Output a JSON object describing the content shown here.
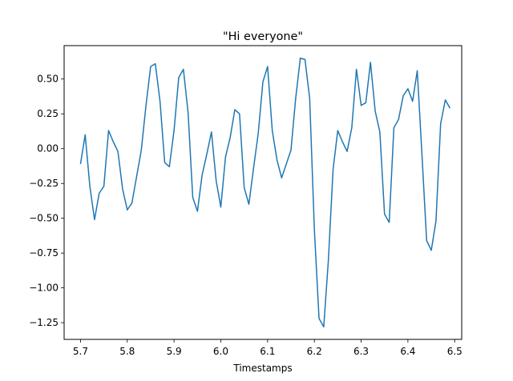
{
  "chart_data": {
    "type": "line",
    "title": "\"Hi everyone\"",
    "xlabel": "Timestamps",
    "ylabel": "",
    "xlim": [
      5.665,
      6.515
    ],
    "ylim": [
      -1.37,
      0.74
    ],
    "x_ticks": [
      5.7,
      5.8,
      5.9,
      6.0,
      6.1,
      6.2,
      6.3,
      6.4,
      6.5
    ],
    "x_tick_labels": [
      "5.7",
      "5.8",
      "5.9",
      "6.0",
      "6.1",
      "6.2",
      "6.3",
      "6.4",
      "6.5"
    ],
    "y_ticks": [
      -1.25,
      -1.0,
      -0.75,
      -0.5,
      -0.25,
      0.0,
      0.25,
      0.5
    ],
    "y_tick_labels": [
      "−1.25",
      "−1.00",
      "−0.75",
      "−0.50",
      "−0.25",
      "0.00",
      "0.25",
      "0.50"
    ],
    "grid": false,
    "series": [
      {
        "color": "#1f77b4",
        "x": [
          5.7,
          5.71,
          5.72,
          5.73,
          5.74,
          5.75,
          5.76,
          5.77,
          5.78,
          5.79,
          5.8,
          5.81,
          5.82,
          5.83,
          5.84,
          5.85,
          5.86,
          5.87,
          5.88,
          5.89,
          5.9,
          5.91,
          5.92,
          5.93,
          5.94,
          5.95,
          5.96,
          5.97,
          5.98,
          5.99,
          6.0,
          6.01,
          6.02,
          6.03,
          6.04,
          6.05,
          6.06,
          6.07,
          6.08,
          6.09,
          6.1,
          6.11,
          6.12,
          6.13,
          6.14,
          6.15,
          6.16,
          6.17,
          6.18,
          6.19,
          6.2,
          6.21,
          6.22,
          6.23,
          6.24,
          6.25,
          6.26,
          6.27,
          6.28,
          6.29,
          6.3,
          6.31,
          6.32,
          6.33,
          6.34,
          6.35,
          6.36,
          6.37,
          6.38,
          6.39,
          6.4,
          6.41,
          6.42,
          6.43,
          6.44,
          6.45,
          6.46,
          6.47,
          6.48,
          6.49
        ],
        "y": [
          -0.11,
          0.1,
          -0.27,
          -0.51,
          -0.32,
          -0.27,
          0.13,
          0.05,
          -0.02,
          -0.29,
          -0.44,
          -0.39,
          -0.2,
          -0.01,
          0.31,
          0.59,
          0.61,
          0.34,
          -0.1,
          -0.13,
          0.13,
          0.51,
          0.57,
          0.26,
          -0.35,
          -0.45,
          -0.19,
          -0.04,
          0.12,
          -0.23,
          -0.42,
          -0.06,
          0.08,
          0.28,
          0.25,
          -0.28,
          -0.4,
          -0.14,
          0.11,
          0.48,
          0.59,
          0.13,
          -0.08,
          -0.21,
          -0.11,
          -0.01,
          0.36,
          0.65,
          0.64,
          0.36,
          -0.58,
          -1.22,
          -1.28,
          -0.8,
          -0.15,
          0.13,
          0.05,
          -0.02,
          0.15,
          0.57,
          0.31,
          0.33,
          0.62,
          0.27,
          0.12,
          -0.47,
          -0.53,
          0.15,
          0.21,
          0.38,
          0.43,
          0.34,
          0.56,
          -0.04,
          -0.66,
          -0.73,
          -0.52,
          0.18,
          0.35,
          0.29
        ]
      }
    ]
  }
}
